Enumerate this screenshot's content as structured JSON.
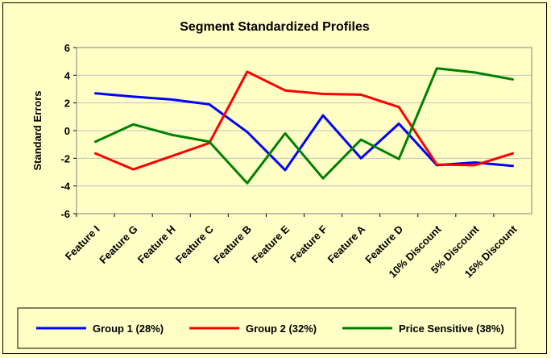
{
  "chart_data": {
    "type": "line",
    "title": "Segment Standardized Profiles",
    "xlabel": "",
    "ylabel": "Standard Errors",
    "ylim": [
      -6,
      6
    ],
    "yticks": [
      -6,
      -4,
      -2,
      0,
      2,
      4,
      6
    ],
    "grid": true,
    "legend": "bottom",
    "categories": [
      "Feature I",
      "Feature G",
      "Feature H",
      "Feature C",
      "Feature B",
      "Feature E",
      "Feature F",
      "Feature A",
      "Feature D",
      "10% Discount",
      "5% Discount",
      "15% Discount"
    ],
    "series": [
      {
        "name": "Group 1 (28%)",
        "color": "#0000ff",
        "values": [
          2.7,
          2.45,
          2.25,
          1.9,
          -0.1,
          -2.85,
          1.1,
          -2.0,
          0.5,
          -2.5,
          -2.3,
          -2.55
        ]
      },
      {
        "name": "Group 2 (32%)",
        "color": "#ff0000",
        "values": [
          -1.65,
          -2.8,
          -1.85,
          -0.9,
          4.25,
          2.9,
          2.65,
          2.6,
          1.7,
          -2.45,
          -2.5,
          -1.65
        ]
      },
      {
        "name": "Price Sensitive (38%)",
        "color": "#008000",
        "values": [
          -0.8,
          0.45,
          -0.3,
          -0.8,
          -3.8,
          -0.2,
          -3.45,
          -0.65,
          -2.05,
          4.5,
          4.2,
          3.7
        ]
      }
    ]
  }
}
